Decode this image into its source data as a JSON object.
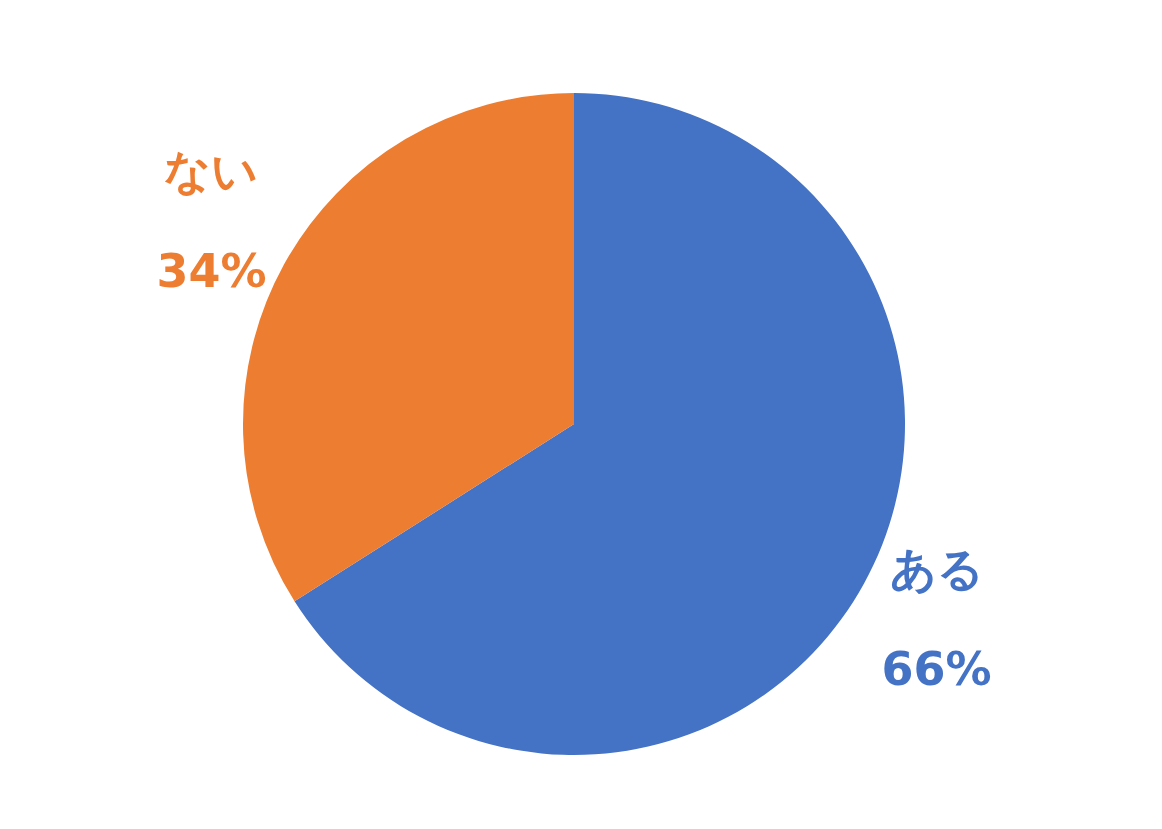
{
  "chart_data": {
    "type": "pie",
    "categories": [
      "ある",
      "ない"
    ],
    "values": [
      66,
      34
    ],
    "colors": [
      "#4472c4",
      "#ed7d31"
    ],
    "value_labels": [
      "66%",
      "34%"
    ],
    "legend": false
  }
}
